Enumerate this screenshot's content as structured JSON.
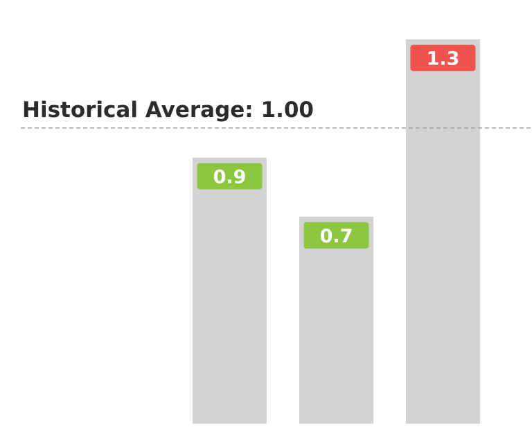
{
  "chart_data": {
    "type": "bar",
    "categories": [
      "",
      "",
      ""
    ],
    "values": [
      0.9,
      0.7,
      1.3
    ],
    "value_labels": [
      "0.9",
      "0.7",
      "1.3"
    ],
    "reference_line": {
      "value": 1.0,
      "label": "Historical Average: 1.00",
      "style": "dashed"
    },
    "ylim": [
      0,
      1.4
    ],
    "grid": false,
    "colors": {
      "bar": "#d3d3d4",
      "below_average": "#8dc63f",
      "above_average": "#ef5350",
      "reference_line": "#9e9e9e",
      "label_text": "#2b2b2b"
    }
  }
}
